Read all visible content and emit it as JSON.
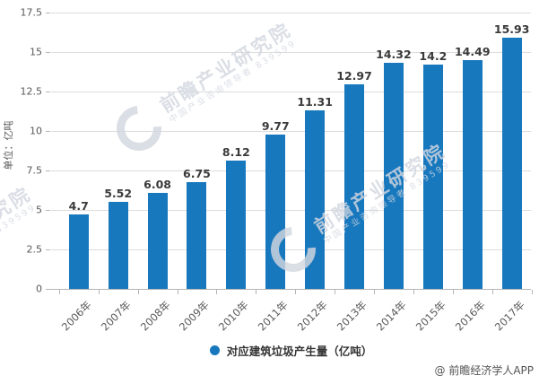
{
  "chart_data": {
    "type": "bar",
    "title": "",
    "ylabel": "单位：亿吨",
    "xlabel": "",
    "categories": [
      "2006年",
      "2007年",
      "2008年",
      "2009年",
      "2010年",
      "2011年",
      "2012年",
      "2013年",
      "2014年",
      "2015年",
      "2016年",
      "2017年"
    ],
    "series": [
      {
        "name": "对应建筑垃圾产生量（亿吨）",
        "color": "#1778be",
        "values": [
          4.7,
          5.52,
          6.08,
          6.75,
          8.12,
          9.77,
          11.31,
          12.97,
          14.32,
          14.2,
          14.49,
          15.93
        ]
      }
    ],
    "value_labels": [
      "4.7",
      "5.52",
      "6.08",
      "6.75",
      "8.12",
      "9.77",
      "11.31",
      "12.97",
      "14.32",
      "14.2",
      "14.49",
      "15.93"
    ],
    "ylim": [
      0,
      17.5
    ],
    "ytick_step": 2.5,
    "ytick_labels": [
      "0",
      "2.5",
      "5",
      "7.5",
      "10",
      "12.5",
      "15",
      "17.5"
    ],
    "grid": true,
    "legend_position": "bottom"
  },
  "legend": {
    "label": "对应建筑垃圾产生量（亿吨）",
    "marker_color": "#1778be"
  },
  "watermark": {
    "brand": "前瞻产业研究院",
    "tagline": "中国产业咨询领导者 839599",
    "credit": "@ 前瞻经济学人APP"
  },
  "colors": {
    "bar": "#1778be",
    "grid": "#dcdcdc",
    "axis": "#b5b5b5",
    "axis_text": "#595959",
    "value_text": "#3a3a3a"
  }
}
